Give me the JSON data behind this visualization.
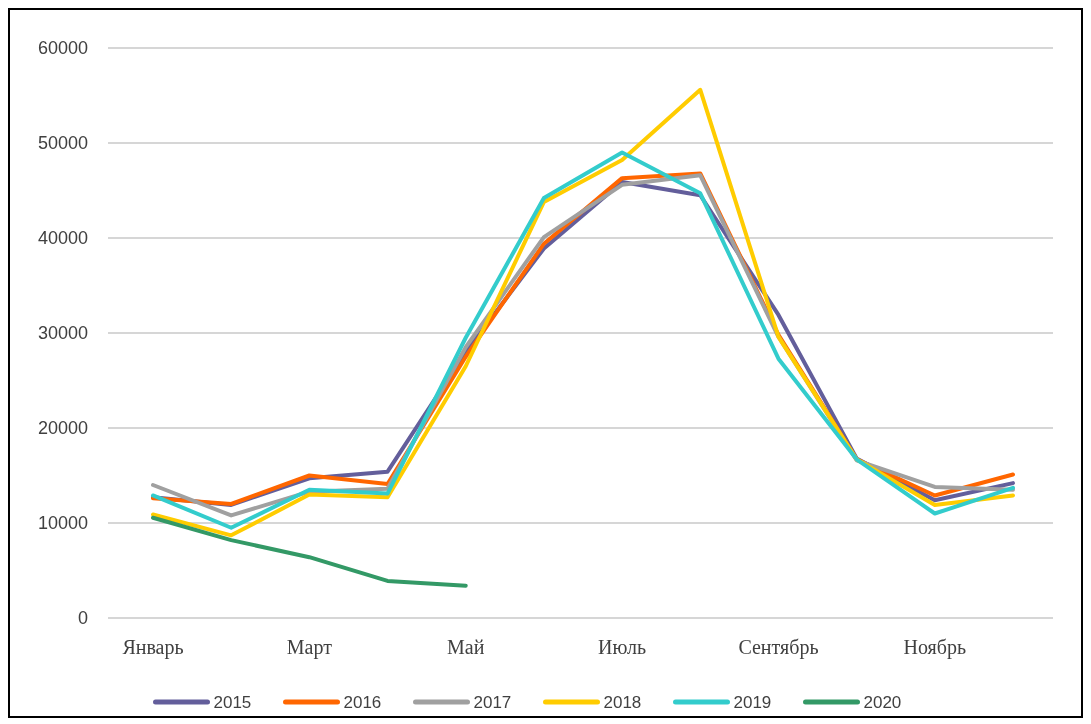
{
  "chart_data": {
    "type": "line",
    "categories": [
      "Январь",
      null,
      "Март",
      null,
      "Май",
      null,
      "Июль",
      null,
      "Сентябрь",
      null,
      "Ноябрь",
      null
    ],
    "ylim": [
      0,
      60000
    ],
    "yticks": [
      0,
      10000,
      20000,
      30000,
      40000,
      50000,
      60000
    ],
    "grid": "y",
    "legend": "bottom",
    "marker": "none",
    "line_style": "solid",
    "series": [
      {
        "name": "2015",
        "color": "#635e9b",
        "values": [
          12700,
          11900,
          14700,
          15400,
          28000,
          38900,
          45900,
          44500,
          31900,
          16800,
          12400,
          14200
        ]
      },
      {
        "name": "2016",
        "color": "#ff6600",
        "values": [
          12600,
          12000,
          15000,
          14100,
          27500,
          39400,
          46300,
          46800,
          29800,
          16700,
          12900,
          15100
        ]
      },
      {
        "name": "2017",
        "color": "#a0a0a0",
        "values": [
          14000,
          10800,
          13300,
          13600,
          28500,
          40100,
          45600,
          46600,
          29600,
          16600,
          13800,
          13500
        ]
      },
      {
        "name": "2018",
        "color": "#ffcc00",
        "values": [
          10900,
          8700,
          13000,
          12700,
          26500,
          43800,
          48200,
          55600,
          29600,
          16700,
          11900,
          12900
        ]
      },
      {
        "name": "2019",
        "color": "#33cccc",
        "values": [
          12900,
          9500,
          13500,
          13100,
          29500,
          44200,
          49000,
          44700,
          27300,
          16700,
          11000,
          13700
        ]
      },
      {
        "name": "2020",
        "color": "#339966",
        "values": [
          10550,
          8200,
          6400,
          3900,
          3400,
          null,
          null,
          null,
          null,
          null,
          null,
          null
        ]
      }
    ]
  }
}
